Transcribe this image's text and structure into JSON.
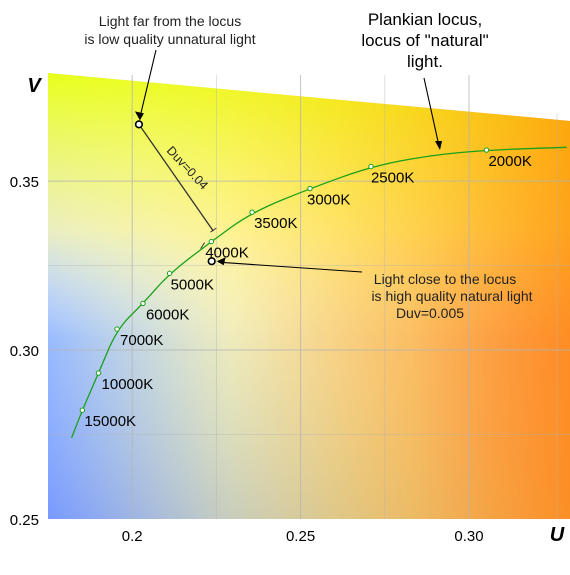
{
  "chart_data": {
    "type": "line",
    "title": "",
    "xlabel": "U",
    "ylabel": "V",
    "xlim": [
      0.175,
      0.33
    ],
    "ylim": [
      0.25,
      0.382
    ],
    "xticks": [
      0.2,
      0.25,
      0.3
    ],
    "yticks": [
      0.25,
      0.3,
      0.35
    ],
    "xtick_labels": [
      "0.2",
      "0.25",
      "0.30"
    ],
    "ytick_labels": [
      "0.25",
      "0.30",
      "0.35"
    ],
    "grid": true,
    "colors": {
      "locus": "#1aa01a",
      "grid": "#b4b4b4",
      "text": "#000000",
      "annotation_text": "#222222"
    },
    "series": [
      {
        "values": [
          [
            0.182,
            0.274
          ],
          [
            0.1852,
            0.2822
          ],
          [
            0.19,
            0.2932
          ],
          [
            0.1955,
            0.3062
          ],
          [
            0.2032,
            0.3138
          ],
          [
            0.2111,
            0.3227
          ],
          [
            0.2235,
            0.3321
          ],
          [
            0.2356,
            0.3408
          ],
          [
            0.2528,
            0.3478
          ],
          [
            0.2709,
            0.3543
          ],
          [
            0.2882,
            0.3576
          ],
          [
            0.3052,
            0.3592
          ],
          [
            0.329,
            0.36
          ]
        ]
      }
    ],
    "points": [
      {
        "label": "15000K",
        "u": 0.1852,
        "v": 0.2822
      },
      {
        "label": "10000K",
        "u": 0.19,
        "v": 0.2932
      },
      {
        "label": "7000K",
        "u": 0.1955,
        "v": 0.3062
      },
      {
        "label": "6000K",
        "u": 0.2032,
        "v": 0.3138
      },
      {
        "label": "5000K",
        "u": 0.2111,
        "v": 0.3227
      },
      {
        "label": "4000K",
        "u": 0.2235,
        "v": 0.3321
      },
      {
        "label": "3500K",
        "u": 0.2356,
        "v": 0.3408
      },
      {
        "label": "3000K",
        "u": 0.2528,
        "v": 0.3478
      },
      {
        "label": "2500K",
        "u": 0.2709,
        "v": 0.3543
      },
      {
        "label": "2000K",
        "u": 0.3052,
        "v": 0.3592
      }
    ],
    "sample_points": [
      {
        "u": 0.202,
        "v": 0.3668
      },
      {
        "u": 0.2236,
        "v": 0.3263
      }
    ],
    "annotations": {
      "far_text": [
        "Light far from the locus",
        "is low quality unnatural light"
      ],
      "near_text": [
        "Light close to the locus",
        "is high quality natural light",
        "Duv=0.005"
      ],
      "locus_text": [
        "Plankian locus,",
        "locus of \"natural\"",
        "light."
      ],
      "duv_far_label": "Duv=0.04"
    }
  }
}
